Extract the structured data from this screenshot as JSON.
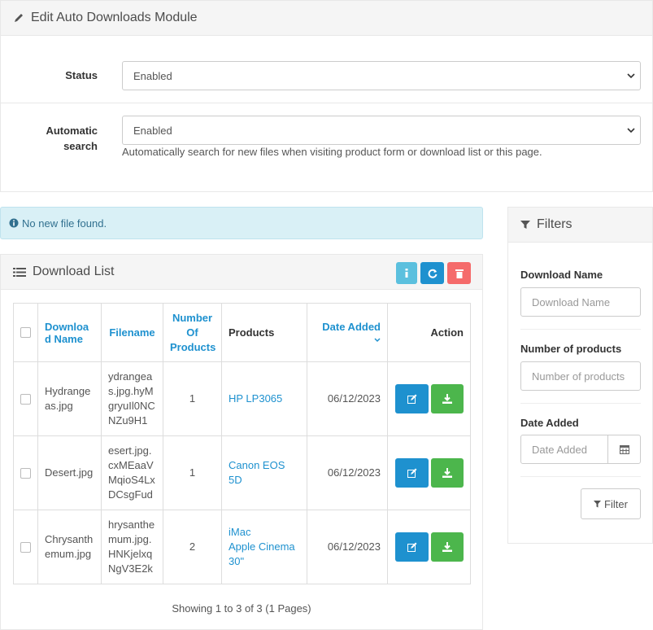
{
  "module_panel": {
    "title": "Edit Auto Downloads Module",
    "fields": [
      {
        "label": "Status",
        "value": "Enabled"
      },
      {
        "label": "Automatic search",
        "value": "Enabled",
        "help": "Automatically search for new files when visiting product form or download list or this page."
      }
    ]
  },
  "alert": "No new file found.",
  "download_list": {
    "title": "Download List",
    "columns": [
      "Download Name",
      "Filename",
      "Number Of Products",
      "Products",
      "Date Added",
      "Action"
    ],
    "rows": [
      {
        "name": "Hydrangeas.jpg",
        "filename": "ydrangeas.jpg.hyMgryuIl0NCNZu9H1",
        "count": 1,
        "products": [
          "HP LP3065"
        ],
        "date": "06/12/2023"
      },
      {
        "name": "Desert.jpg",
        "filename": "esert.jpg.cxMEaaVMqioS4LxDCsgFud",
        "count": 1,
        "products": [
          "Canon EOS 5D"
        ],
        "date": "06/12/2023"
      },
      {
        "name": "Chrysanthemum.jpg",
        "filename": "hrysanthemum.jpg.HNKjelxqNgV3E2k",
        "count": 2,
        "products": [
          "iMac",
          "Apple Cinema 30\""
        ],
        "date": "06/12/2023"
      }
    ],
    "pagination": "Showing 1 to 3 of 3 (1 Pages)"
  },
  "filters": {
    "title": "Filters",
    "fields": [
      {
        "label": "Download Name",
        "placeholder": "Download Name"
      },
      {
        "label": "Number of products",
        "placeholder": "Number of products"
      },
      {
        "label": "Date Added",
        "placeholder": "Date Added"
      }
    ],
    "button": "Filter"
  }
}
